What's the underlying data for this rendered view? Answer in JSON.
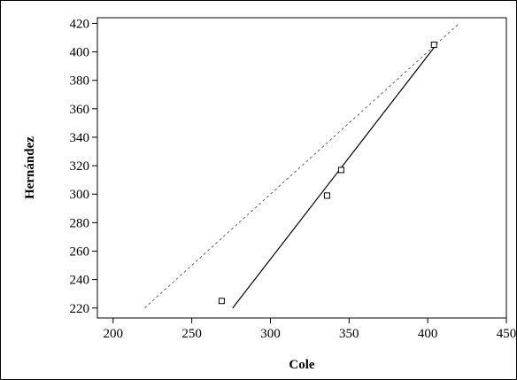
{
  "chart_data": {
    "type": "scatter",
    "title": "",
    "xlabel": "Cole",
    "ylabel": "Hernández",
    "xlim": [
      190,
      450
    ],
    "ylim": [
      213,
      424
    ],
    "x_ticks": [
      200,
      250,
      300,
      350,
      400,
      450
    ],
    "y_ticks": [
      220,
      240,
      260,
      280,
      300,
      320,
      340,
      360,
      380,
      400,
      420
    ],
    "grid": false,
    "legend": "none",
    "points": [
      {
        "x": 269,
        "y": 225
      },
      {
        "x": 336,
        "y": 299
      },
      {
        "x": 345,
        "y": 317
      },
      {
        "x": 404,
        "y": 405
      }
    ],
    "fit_line": {
      "style": "solid",
      "x": [
        276,
        404
      ],
      "y": [
        220,
        403
      ]
    },
    "identity_line": {
      "style": "dashed",
      "x": [
        220,
        420
      ],
      "y": [
        220,
        420
      ]
    },
    "colors": {
      "ink": "#000000",
      "dashed": "#666666"
    }
  }
}
